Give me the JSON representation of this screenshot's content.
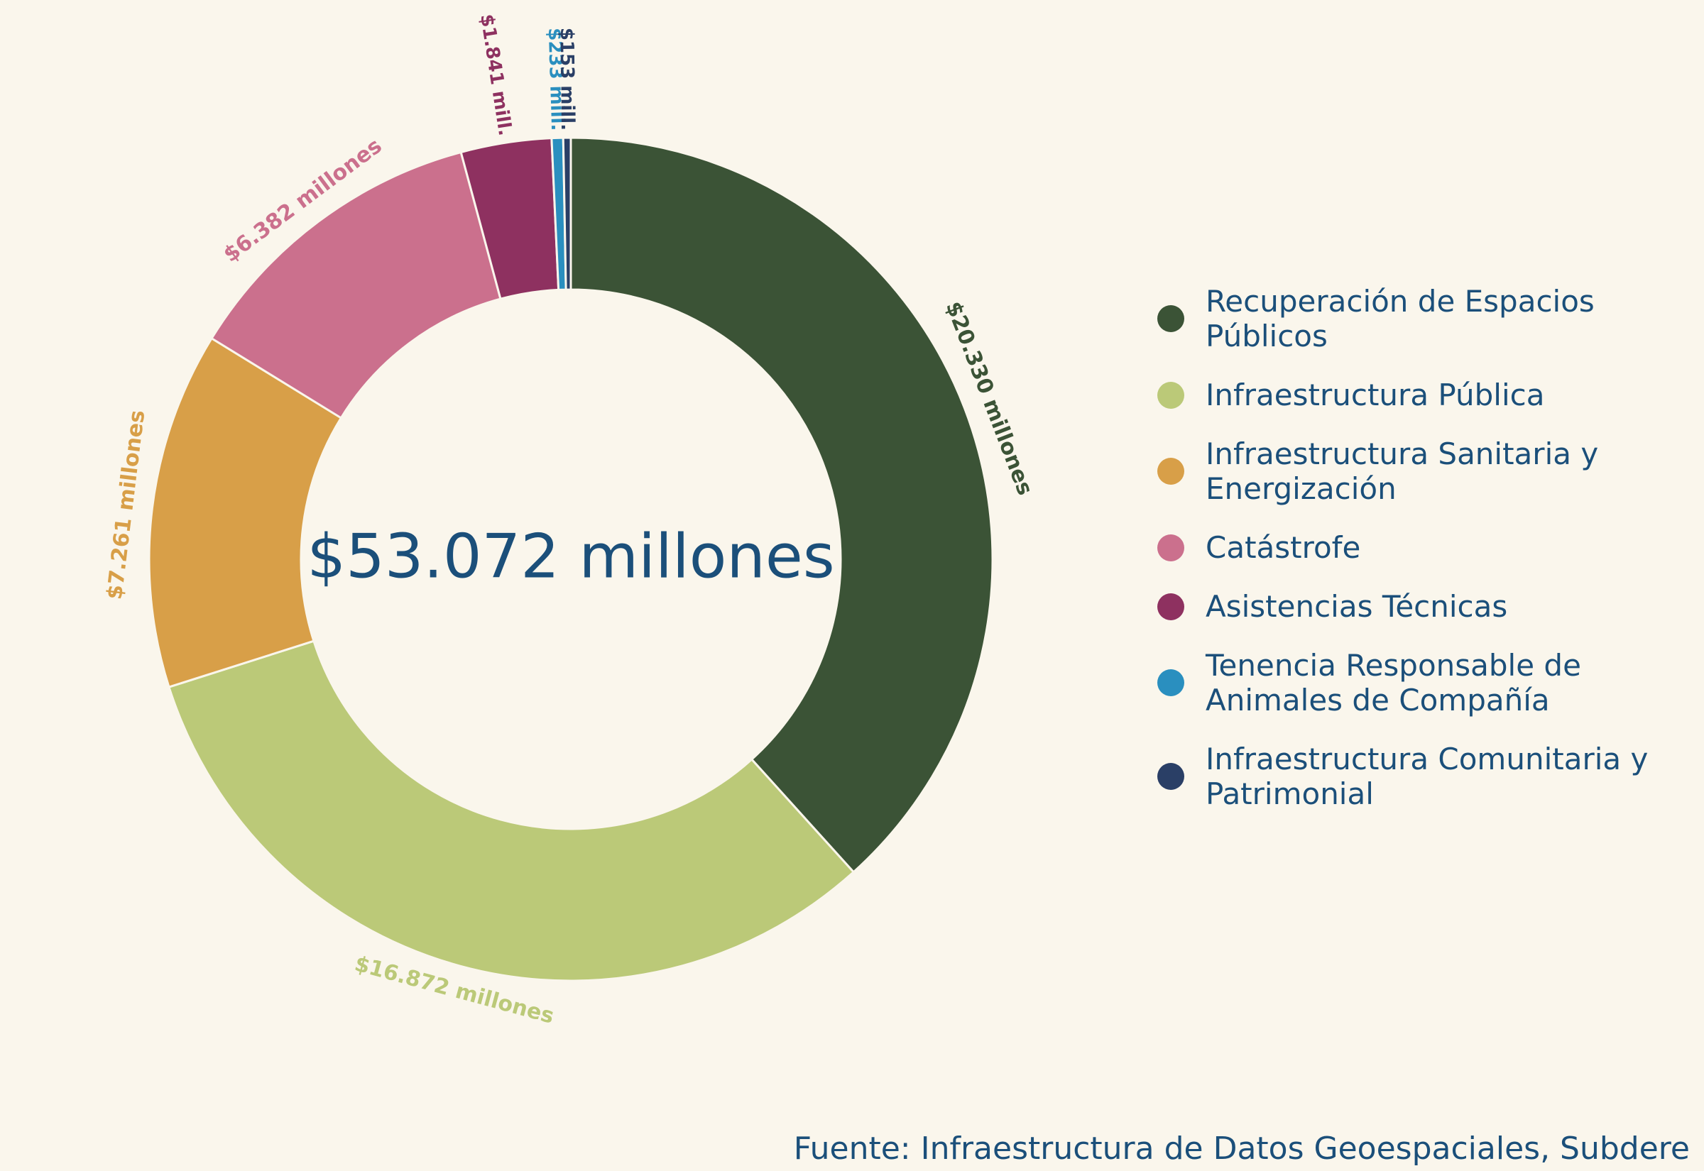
{
  "chart_data": {
    "type": "donut",
    "center_label": "$53.072 millones",
    "categories": [
      "Recuperación de Espacios Públicos",
      "Infraestructura Pública",
      "Infraestructura Sanitaria y Energización",
      "Catástrofe",
      "Asistencias Técnicas",
      "Tenencia Responsable de Animales de Compañía",
      "Infraestructura Comunitaria y Patrimonial"
    ],
    "values": [
      20330,
      16872,
      7261,
      6382,
      1841,
      233,
      153
    ],
    "value_labels": [
      "$20.330 millones",
      "$16.872 millones",
      "$7.261 millones",
      "$6.382 millones",
      "$1.841 mill.",
      "$233 mill.",
      "$153 mill."
    ],
    "colors": [
      "#3b5336",
      "#bbc978",
      "#d89f48",
      "#cb708d",
      "#8e3160",
      "#2a8fbf",
      "#2a3f66"
    ],
    "legend": "right",
    "source": "Fuente: Infraestructura de Datos Geoespaciales, Subdere"
  }
}
